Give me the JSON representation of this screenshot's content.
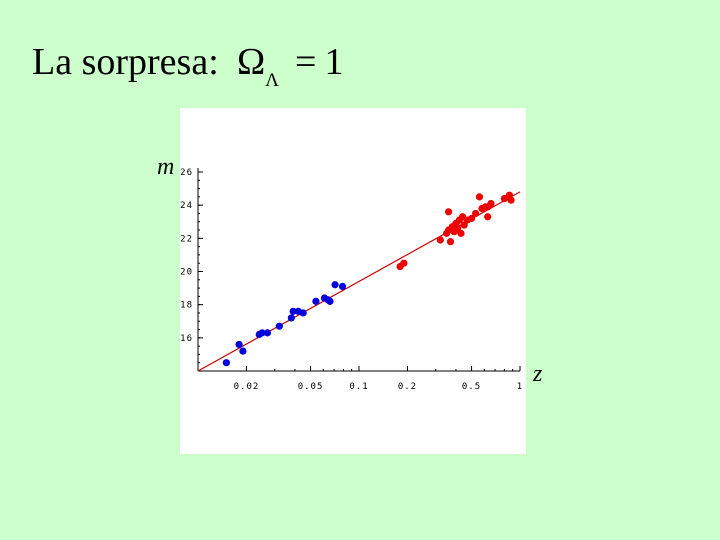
{
  "slide": {
    "title": "La sorpresa:",
    "formula_symbol": "Ω",
    "formula_subscript": "Λ",
    "formula_equals": "=",
    "formula_value": "1"
  },
  "chart_data": {
    "type": "scatter",
    "xlabel": "z",
    "ylabel": "m",
    "x_scale": "log",
    "xlim": [
      0.01,
      1.0
    ],
    "ylim": [
      14.0,
      26.0
    ],
    "x_ticks": [
      {
        "value": 0.02,
        "label": "0.02"
      },
      {
        "value": 0.05,
        "label": "0.05"
      },
      {
        "value": 0.1,
        "label": "0.1"
      },
      {
        "value": 0.2,
        "label": "0.2"
      },
      {
        "value": 0.5,
        "label": "0.5"
      },
      {
        "value": 1.0,
        "label": "1"
      }
    ],
    "y_ticks": [
      {
        "value": 16,
        "label": "16"
      },
      {
        "value": 18,
        "label": "18"
      },
      {
        "value": 20,
        "label": "20"
      },
      {
        "value": 22,
        "label": "22"
      },
      {
        "value": 24,
        "label": "24"
      },
      {
        "value": 26,
        "label": "26"
      }
    ],
    "fit_line": {
      "color": "#cc0000",
      "x": [
        0.01,
        1.0
      ],
      "y": [
        14.0,
        24.8
      ]
    },
    "series": [
      {
        "color": "#0000dd",
        "points": [
          [
            0.015,
            14.5
          ],
          [
            0.018,
            15.6
          ],
          [
            0.019,
            15.2
          ],
          [
            0.024,
            16.2
          ],
          [
            0.025,
            16.3
          ],
          [
            0.027,
            16.3
          ],
          [
            0.032,
            16.7
          ],
          [
            0.038,
            17.2
          ],
          [
            0.039,
            17.6
          ],
          [
            0.042,
            17.6
          ],
          [
            0.045,
            17.5
          ],
          [
            0.054,
            18.2
          ],
          [
            0.061,
            18.4
          ],
          [
            0.064,
            18.3
          ],
          [
            0.066,
            18.2
          ],
          [
            0.071,
            19.2
          ],
          [
            0.079,
            19.1
          ]
        ]
      },
      {
        "color": "#ee0000",
        "points": [
          [
            0.18,
            20.3
          ],
          [
            0.19,
            20.5
          ],
          [
            0.32,
            21.9
          ],
          [
            0.35,
            22.3
          ],
          [
            0.36,
            22.5
          ],
          [
            0.36,
            23.6
          ],
          [
            0.37,
            21.8
          ],
          [
            0.38,
            22.7
          ],
          [
            0.39,
            22.4
          ],
          [
            0.4,
            22.9
          ],
          [
            0.41,
            22.6
          ],
          [
            0.42,
            23.1
          ],
          [
            0.43,
            22.3
          ],
          [
            0.44,
            23.3
          ],
          [
            0.45,
            22.8
          ],
          [
            0.47,
            23.1
          ],
          [
            0.5,
            23.2
          ],
          [
            0.53,
            23.5
          ],
          [
            0.56,
            24.5
          ],
          [
            0.58,
            23.8
          ],
          [
            0.61,
            23.9
          ],
          [
            0.63,
            23.3
          ],
          [
            0.63,
            23.9
          ],
          [
            0.66,
            24.1
          ],
          [
            0.8,
            24.4
          ],
          [
            0.86,
            24.6
          ],
          [
            0.88,
            24.3
          ]
        ]
      }
    ]
  }
}
